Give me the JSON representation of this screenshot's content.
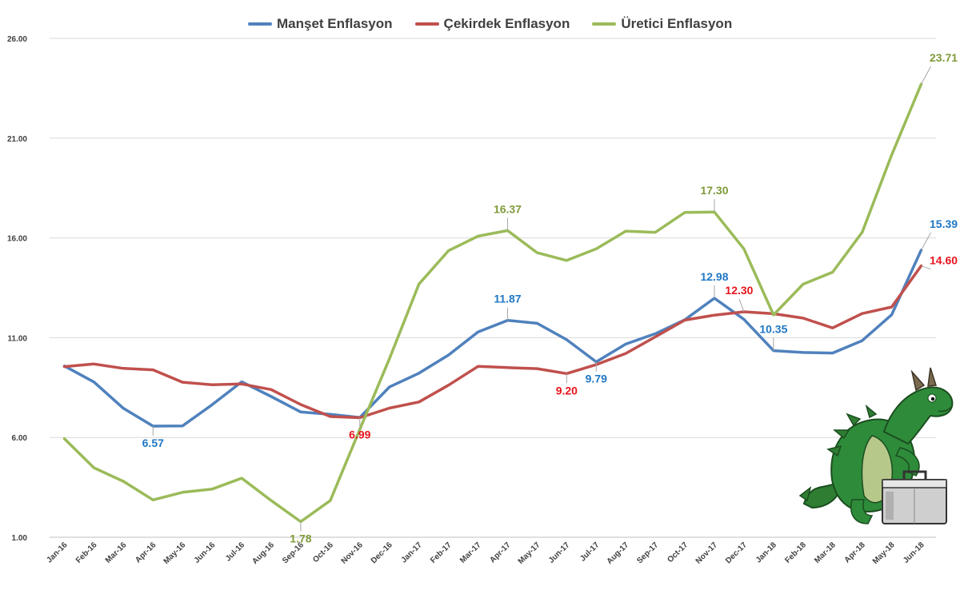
{
  "chart_data": {
    "type": "line",
    "categories": [
      "Jan-16",
      "Feb-16",
      "Mar-16",
      "Apr-16",
      "May-16",
      "Jun-16",
      "Jul-16",
      "Aug-16",
      "Sep-16",
      "Oct-16",
      "Nov-16",
      "Dec-16",
      "Jan-17",
      "Feb-17",
      "Mar-17",
      "Apr-17",
      "May-17",
      "Jun-17",
      "Jul-17",
      "Aug-17",
      "Sep-17",
      "Oct-17",
      "Nov-17",
      "Dec-17",
      "Jan-18",
      "Feb-18",
      "Mar-18",
      "Apr-18",
      "May-18",
      "Jun-18"
    ],
    "ylim": [
      1,
      26
    ],
    "yticks": [
      "1.00",
      "6.00",
      "11.00",
      "16.00",
      "21.00",
      "26.00"
    ],
    "grid": true,
    "legend_position": "top-center",
    "series": [
      {
        "name": "Manşet Enflasyon",
        "color": "#4f81bd",
        "label_color": "#1f77c4",
        "values": [
          9.58,
          8.78,
          7.46,
          6.57,
          6.58,
          7.64,
          8.79,
          8.05,
          7.28,
          7.16,
          7.0,
          8.53,
          9.22,
          10.13,
          11.29,
          11.87,
          11.72,
          10.9,
          9.79,
          10.68,
          11.2,
          11.9,
          12.98,
          11.92,
          10.35,
          10.26,
          10.23,
          10.85,
          12.15,
          15.39
        ],
        "labels": [
          {
            "index": 3,
            "text": "6.57"
          },
          {
            "index": 15,
            "text": "11.87"
          },
          {
            "index": 18,
            "text": "9.79"
          },
          {
            "index": 22,
            "text": "12.98"
          },
          {
            "index": 24,
            "text": "10.35"
          },
          {
            "index": 29,
            "text": "15.39"
          }
        ]
      },
      {
        "name": "Çekirdek Enflasyon",
        "color": "#c0504d",
        "label_color": "#e8141c",
        "values": [
          9.55,
          9.68,
          9.46,
          9.39,
          8.77,
          8.64,
          8.68,
          8.4,
          7.65,
          7.05,
          6.99,
          7.47,
          7.78,
          8.62,
          9.56,
          9.5,
          9.45,
          9.2,
          9.65,
          10.21,
          11.04,
          11.88,
          12.13,
          12.3,
          12.2,
          11.98,
          11.49,
          12.21,
          12.54,
          14.6
        ],
        "labels": [
          {
            "index": 10,
            "text": "6.99"
          },
          {
            "index": 17,
            "text": "9.20"
          },
          {
            "index": 23,
            "text": "12.30"
          },
          {
            "index": 29,
            "text": "14.60"
          }
        ]
      },
      {
        "name": "Üretici Enflasyon",
        "color": "#9bbb59",
        "label_color": "#7f9b3a",
        "values": [
          5.94,
          4.48,
          3.8,
          2.87,
          3.25,
          3.41,
          3.96,
          2.84,
          1.78,
          2.84,
          6.41,
          9.94,
          13.69,
          15.36,
          16.09,
          16.37,
          15.26,
          14.87,
          15.45,
          16.34,
          16.28,
          17.28,
          17.3,
          15.45,
          12.14,
          13.68,
          14.28,
          16.28,
          20.16,
          23.71
        ],
        "labels": [
          {
            "index": 8,
            "text": "1.78"
          },
          {
            "index": 15,
            "text": "16.37"
          },
          {
            "index": 22,
            "text": "17.30"
          },
          {
            "index": 29,
            "text": "23.71"
          }
        ]
      }
    ]
  },
  "decor": {
    "mascot_icon": "dragon-with-briefcase-icon"
  }
}
